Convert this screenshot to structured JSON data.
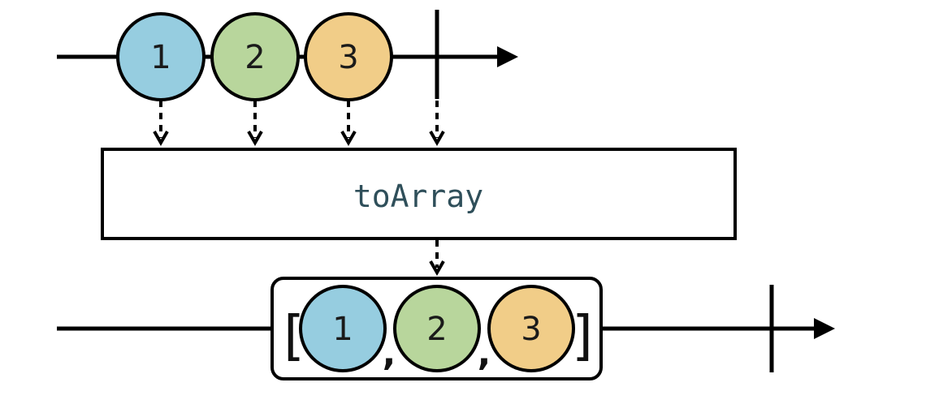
{
  "input": {
    "marbles": [
      {
        "label": "1",
        "color": "#96cde0"
      },
      {
        "label": "2",
        "color": "#b8d69c"
      },
      {
        "label": "3",
        "color": "#f1cd88"
      }
    ]
  },
  "operator": {
    "label": "toArray"
  },
  "output": {
    "open_bracket": "[",
    "close_bracket": "]",
    "separator": ",",
    "marbles": [
      {
        "label": "1",
        "color": "#96cde0"
      },
      {
        "label": "2",
        "color": "#b8d69c"
      },
      {
        "label": "3",
        "color": "#f1cd88"
      }
    ]
  }
}
